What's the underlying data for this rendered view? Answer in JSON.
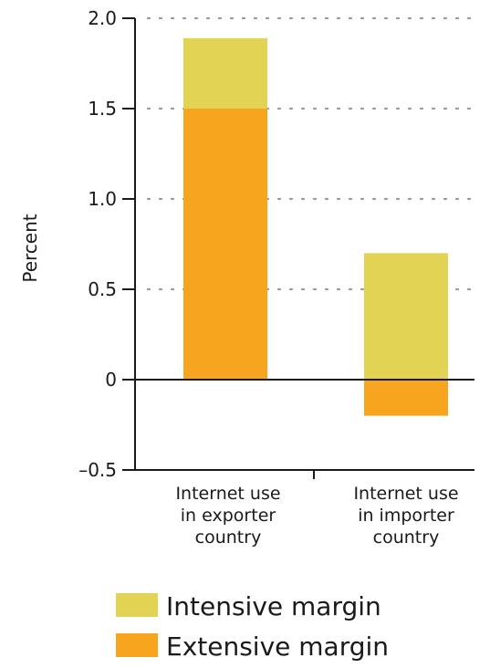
{
  "chart_data": {
    "type": "bar",
    "stacked": true,
    "ylabel": "Percent",
    "ylim": [
      -0.5,
      2.0
    ],
    "yticks": [
      2.0,
      1.5,
      1.0,
      0.5,
      0,
      -0.5
    ],
    "ytick_labels": [
      "2.0",
      "1.5",
      "1.0",
      "0.5",
      "0",
      "–0.5"
    ],
    "grid": "dotted-horizontal",
    "categories": [
      [
        "Internet use",
        "in exporter",
        "country"
      ],
      [
        "Internet use",
        "in importer",
        "country"
      ]
    ],
    "series": [
      {
        "name": "Intensive margin",
        "color": "#e2d354",
        "values": [
          0.39,
          0.7
        ]
      },
      {
        "name": "Extensive margin",
        "color": "#f7a51e",
        "values": [
          1.5,
          -0.2
        ]
      }
    ],
    "legend_position": "bottom",
    "legend_order": [
      "Intensive margin",
      "Extensive margin"
    ]
  }
}
